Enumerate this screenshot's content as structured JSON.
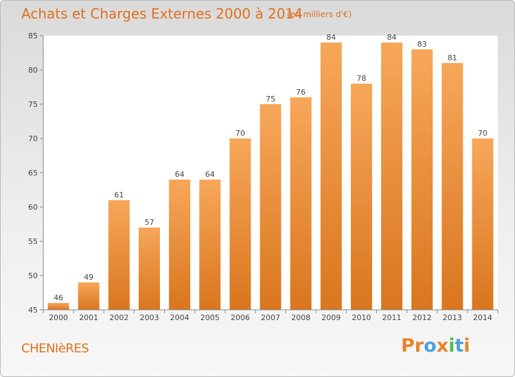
{
  "header": {
    "title": "Achats et Charges Externes 2000 à 2014",
    "unit": "(en milliers d'€)"
  },
  "footer": {
    "commune": "CHENIèRES",
    "brand_letters": [
      "P",
      "r",
      "o",
      "x",
      "i",
      "t",
      "i"
    ]
  },
  "colors": {
    "accent": "#e0701f",
    "bar_top": "#f7a75a",
    "bar_bottom": "#d9761f",
    "brand_letters": [
      "#e8832a",
      "#e8832a",
      "#4aa3df",
      "#e8832a",
      "#5bb946",
      "#4aa3df",
      "#e8832a"
    ]
  },
  "chart_data": {
    "type": "bar",
    "categories": [
      "2000",
      "2001",
      "2002",
      "2003",
      "2004",
      "2005",
      "2006",
      "2007",
      "2008",
      "2009",
      "2010",
      "2011",
      "2012",
      "2013",
      "2014"
    ],
    "values": [
      46,
      49,
      61,
      57,
      64,
      64,
      70,
      75,
      76,
      84,
      78,
      84,
      83,
      81,
      70
    ],
    "title": "Achats et Charges Externes 2000 à 2014",
    "xlabel": "",
    "ylabel": "",
    "ylim": [
      45,
      85
    ],
    "yticks": [
      45,
      50,
      55,
      60,
      65,
      70,
      75,
      80,
      85
    ],
    "grid": false,
    "data_labels": true
  }
}
